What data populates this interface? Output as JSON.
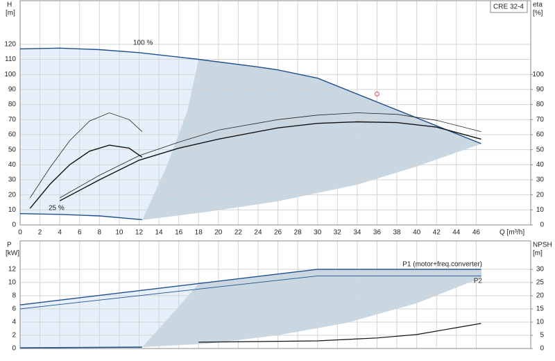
{
  "chart_data": [
    {
      "type": "line",
      "badge": "CRE 32-4",
      "ylabel": "H",
      "yunit": "[m]",
      "y2label": "eta",
      "y2unit": "[%]",
      "xlabel": "Q [m³/h]",
      "xlim": [
        0,
        51.5
      ],
      "ylim": [
        0,
        149
      ],
      "y2lim": [
        0,
        149
      ],
      "xticks": [
        0,
        2,
        4,
        6,
        8,
        10,
        12,
        14,
        16,
        18,
        20,
        22,
        24,
        26,
        28,
        30,
        32,
        34,
        36,
        38,
        40,
        42,
        44,
        46
      ],
      "yticks": [
        0,
        10,
        20,
        30,
        40,
        50,
        60,
        70,
        80,
        90,
        100,
        110,
        120
      ],
      "y2ticks": [
        0,
        10,
        20,
        30,
        40,
        50,
        60,
        70,
        80,
        90,
        100
      ],
      "grid": true,
      "series": [
        {
          "name": "100 %",
          "color": "#1f4e8c",
          "width": 1.4,
          "x": [
            0,
            4,
            8,
            12,
            18,
            24,
            26,
            30,
            46.5
          ],
          "values": [
            117,
            117.5,
            116.5,
            114.5,
            110,
            105,
            103,
            97.5,
            54
          ]
        },
        {
          "name": "25 %",
          "color": "#1f4e8c",
          "width": 1.4,
          "x": [
            0,
            4,
            8,
            12.3
          ],
          "values": [
            7.5,
            7,
            6,
            3.5
          ]
        },
        {
          "color": "#222",
          "width": 0.8,
          "x": [
            1,
            3,
            5,
            7,
            9,
            11,
            12.3
          ],
          "values": [
            18,
            38,
            56,
            69,
            74.5,
            70,
            62
          ]
        },
        {
          "color": "#111",
          "width": 1.4,
          "x": [
            1,
            3,
            5,
            7,
            9,
            11,
            12.3
          ],
          "values": [
            11,
            27,
            40,
            49,
            53,
            51,
            45
          ]
        },
        {
          "color": "#222",
          "width": 0.8,
          "axis": "y2",
          "x": [
            4,
            8,
            12,
            16,
            20,
            26,
            30,
            34,
            38,
            42,
            46.5
          ],
          "values": [
            18,
            33,
            46,
            55,
            63,
            70,
            73,
            74.5,
            73.5,
            69.5,
            62
          ]
        },
        {
          "color": "#111",
          "width": 1.4,
          "axis": "y2",
          "x": [
            4,
            8,
            12,
            16,
            20,
            26,
            30,
            34,
            38,
            42,
            46.5
          ],
          "values": [
            16,
            30,
            43,
            51,
            57,
            64.5,
            67.5,
            68.5,
            68,
            65,
            57
          ]
        }
      ],
      "marker": {
        "x": 36,
        "y": 87,
        "color": "#e05050"
      }
    },
    {
      "type": "line",
      "ylabel": "P",
      "yunit": "[kW]",
      "y2label": "NPSH",
      "y2unit": "[m]",
      "xlim": [
        0,
        51.5
      ],
      "ylim": [
        0,
        16.3
      ],
      "y2lim": [
        0,
        40.8
      ],
      "yticks": [
        0,
        2,
        4,
        6,
        8,
        10,
        12
      ],
      "y2ticks": [
        0,
        5,
        10,
        15,
        20,
        25,
        30
      ],
      "grid": true,
      "series": [
        {
          "name": "P1 (motor+freq.converter)",
          "color": "#1f4e8c",
          "width": 1.4,
          "x": [
            0,
            30,
            46.5
          ],
          "values": [
            6.6,
            12,
            12
          ]
        },
        {
          "name": "P2",
          "color": "#1f4e8c",
          "width": 0.9,
          "x": [
            0,
            30,
            46.5
          ],
          "values": [
            6,
            11,
            11
          ]
        },
        {
          "color": "#1f4e8c",
          "width": 1.6,
          "x": [
            0,
            12.3
          ],
          "values": [
            0.1,
            0.2
          ]
        },
        {
          "color": "#111",
          "width": 1.2,
          "axis": "y2",
          "x": [
            18,
            30,
            36,
            40,
            44,
            46.5
          ],
          "values": [
            2.4,
            2.9,
            4,
            5.3,
            7.9,
            9.5
          ]
        }
      ]
    }
  ]
}
